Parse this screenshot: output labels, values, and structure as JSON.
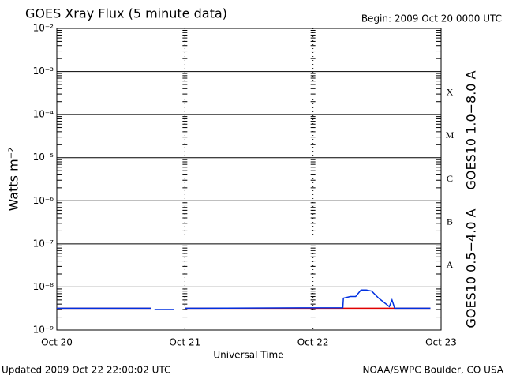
{
  "chart_data": {
    "type": "line",
    "title": "GOES Xray Flux (5 minute data)",
    "subtitle": "Begin:  2009 Oct 20 0000 UTC",
    "x_label": "Universal Time",
    "y_label": "Watts m⁻²",
    "log_y": true,
    "grid": true,
    "footer_left": "Updated 2009 Oct 22 22:00:02 UTC",
    "footer_right": "NOAA/SWPC Boulder, CO USA",
    "flare_classes": [
      "A",
      "B",
      "C",
      "M",
      "X"
    ],
    "xlim": [
      0,
      72
    ],
    "xticks": [
      {
        "value": 0,
        "label": "Oct 20"
      },
      {
        "value": 24,
        "label": "Oct 21"
      },
      {
        "value": 48,
        "label": "Oct 22"
      },
      {
        "value": 72,
        "label": "Oct 23"
      }
    ],
    "ylim": [
      1e-09,
      0.01
    ],
    "yticks": [
      {
        "value": 1e-09,
        "label": "10⁻⁹"
      },
      {
        "value": 1e-08,
        "label": "10⁻⁸"
      },
      {
        "value": 1e-07,
        "label": "10⁻⁷"
      },
      {
        "value": 1e-06,
        "label": "10⁻⁶"
      },
      {
        "value": 1e-05,
        "label": "10⁻⁵"
      },
      {
        "value": 0.0001,
        "label": "10⁻⁴"
      },
      {
        "value": 0.001,
        "label": "10⁻³"
      },
      {
        "value": 0.01,
        "label": "10⁻²"
      }
    ],
    "x": [
      0,
      17.7,
      18.0,
      18.3,
      22.0,
      23.0,
      24,
      53.6,
      53.7,
      55,
      56,
      57,
      58,
      59,
      60,
      60.3,
      62.3,
      62.8,
      63.3,
      70
    ],
    "series": [
      {
        "name": "GOES10 1.0−8.0 A",
        "color": "#e00000",
        "values": [
          3.2e-09,
          3.2e-09,
          null,
          null,
          null,
          null,
          3.2e-09,
          3.2e-09,
          3.2e-09,
          3.2e-09,
          3.2e-09,
          3.2e-09,
          3.2e-09,
          3.2e-09,
          3.2e-09,
          3.2e-09,
          3.2e-09,
          3.2e-09,
          3.2e-09,
          3.2e-09
        ]
      },
      {
        "name": "GOES10 0.5−4.0 A",
        "color": "#0030e0",
        "values": [
          3.2e-09,
          3.2e-09,
          null,
          3e-09,
          3e-09,
          null,
          3.2e-09,
          3.3e-09,
          5.5e-09,
          6e-09,
          6e-09,
          8.5e-09,
          8.5e-09,
          8e-09,
          6e-09,
          5.5e-09,
          3.5e-09,
          5e-09,
          3.2e-09,
          3.2e-09
        ]
      }
    ]
  }
}
